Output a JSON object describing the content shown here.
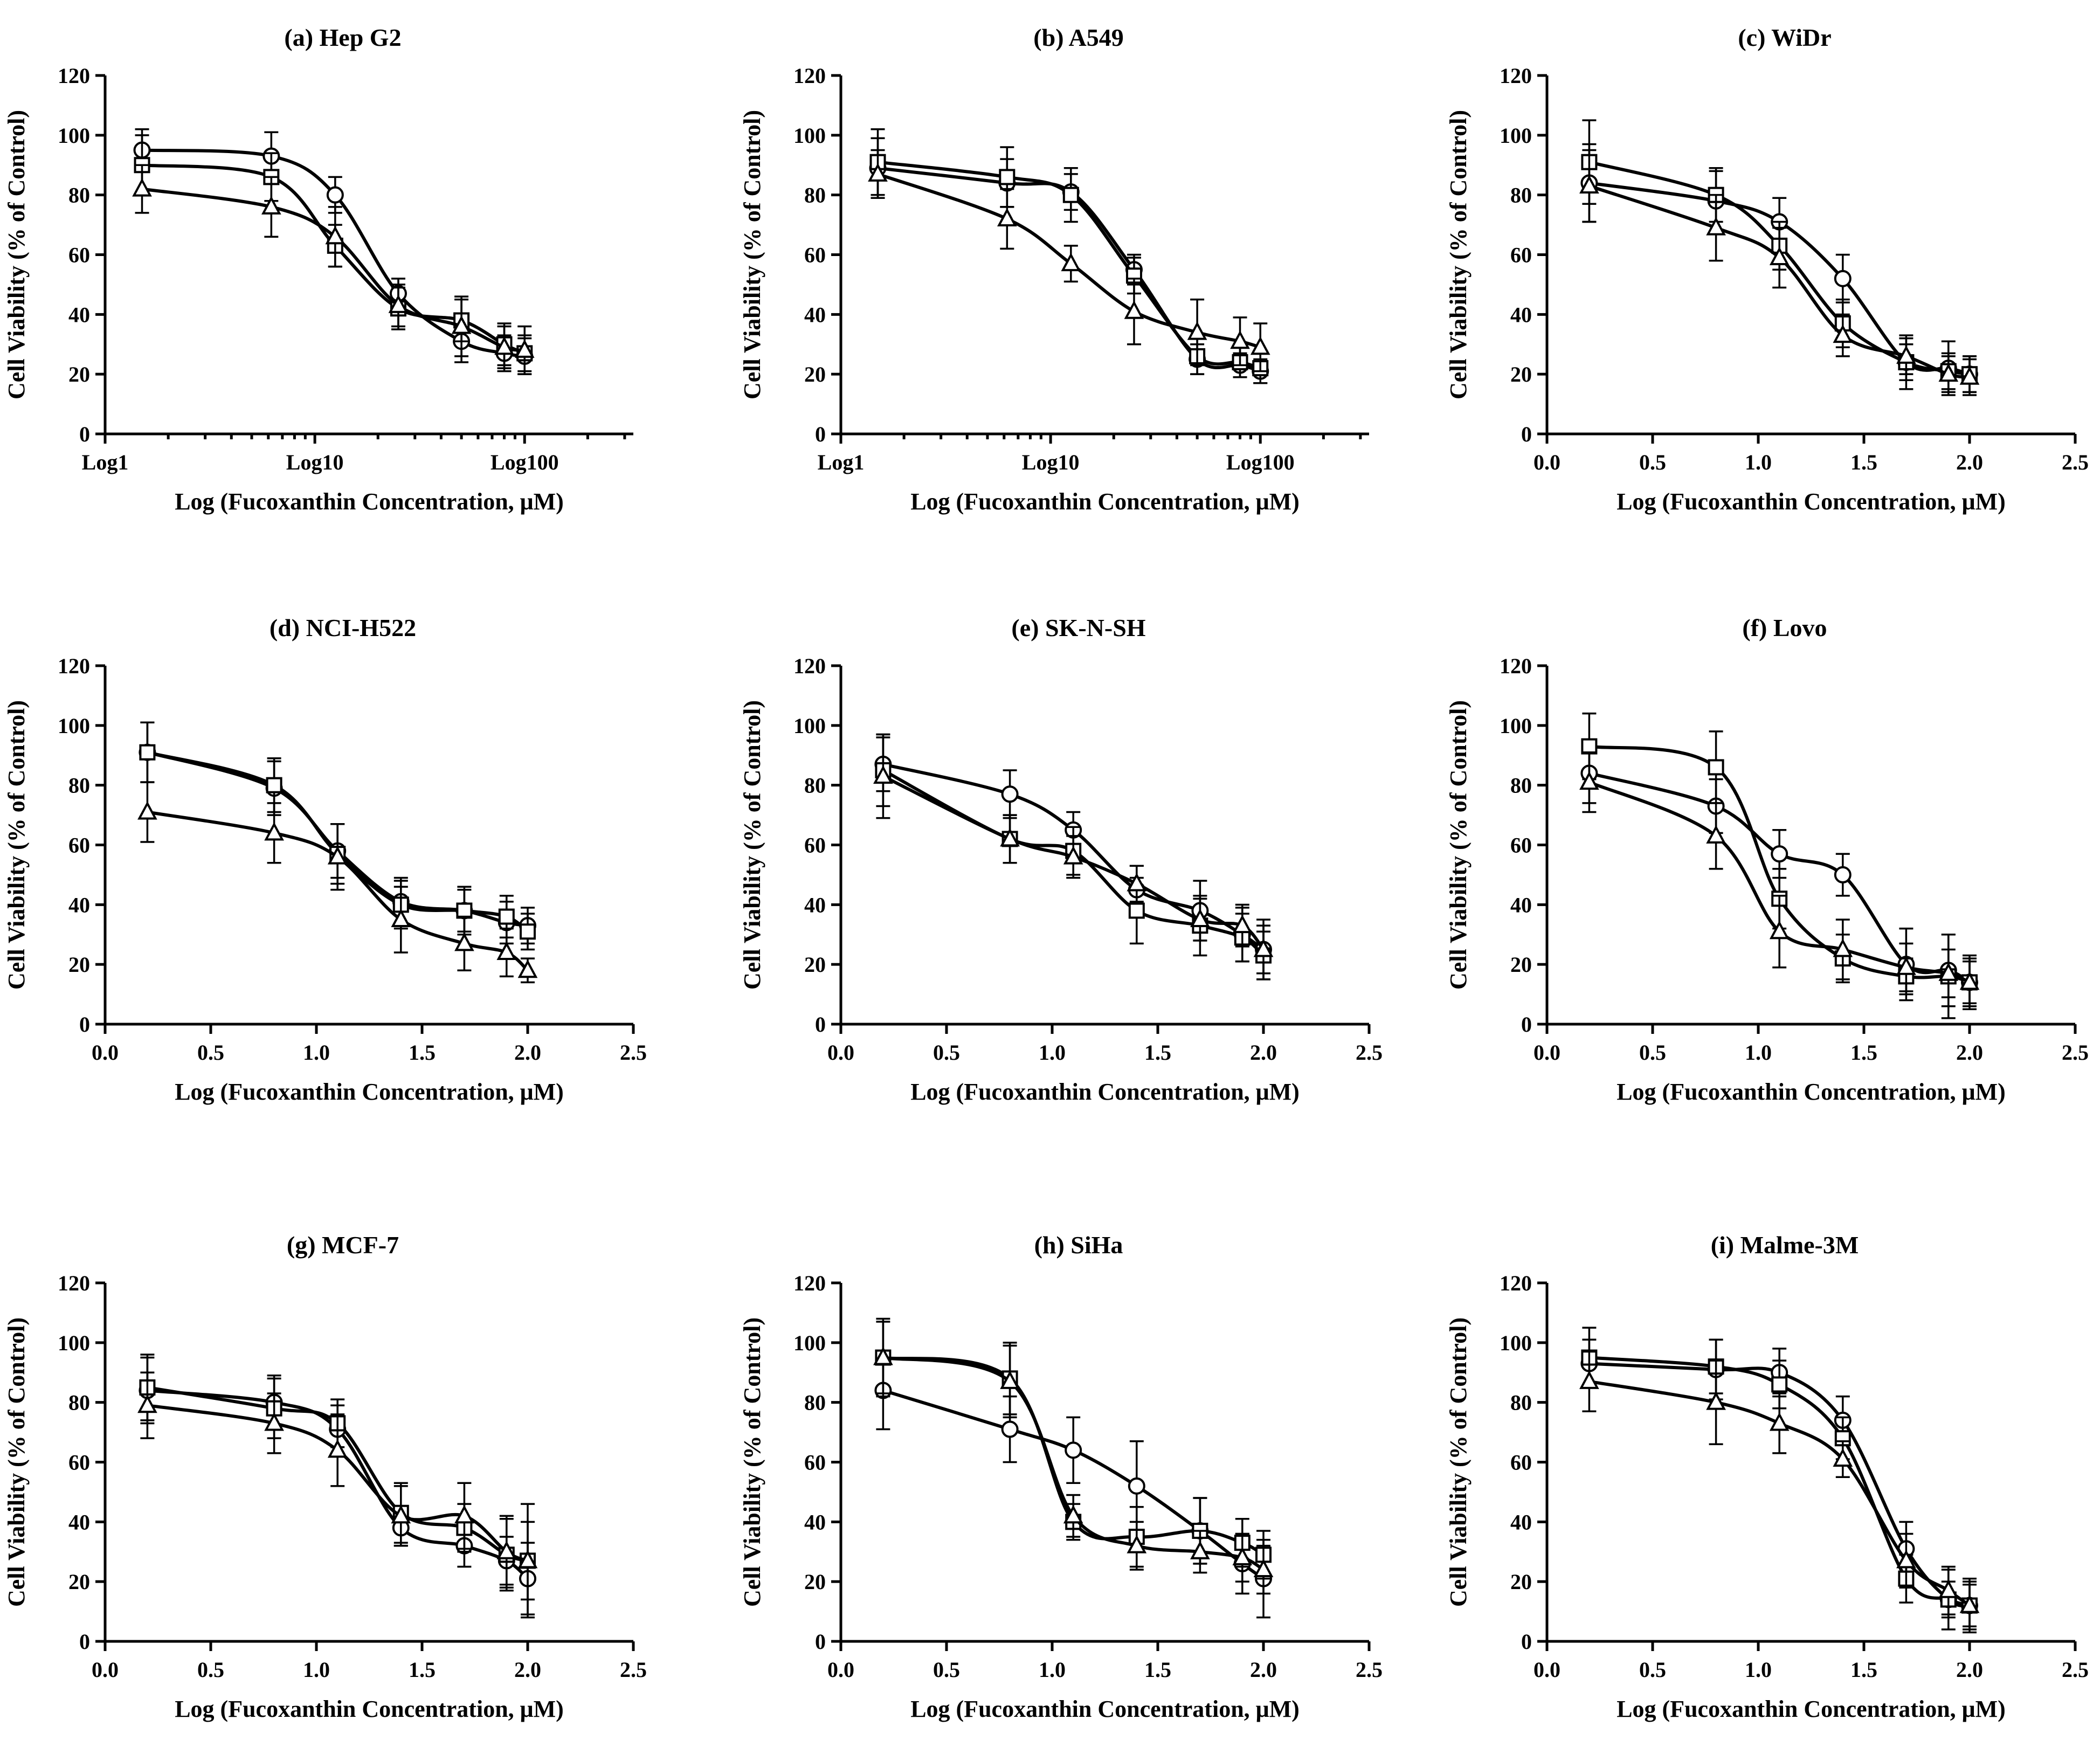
{
  "figure": {
    "xlabel": "Log (Fucoxanthin Concentration, μM)",
    "ylabel": "Cell Viability (% of Control)"
  },
  "chart_data": [
    {
      "type": "line",
      "title": "(a) Hep G2",
      "xlabel": "Log (Fucoxanthin Concentration, μM)",
      "ylabel": "Cell Viability (% of Control)",
      "xaxis": "log",
      "xlim": [
        1,
        330
      ],
      "ylim": [
        0,
        120
      ],
      "xticks": [
        1,
        10,
        100
      ],
      "xticklabels": [
        "Log1",
        "Log10",
        "Log100"
      ],
      "yticks": [
        0,
        20,
        40,
        60,
        80,
        100,
        120
      ],
      "x": [
        1.5,
        6.2,
        12.5,
        25,
        50,
        80,
        100
      ],
      "series": [
        {
          "name": "circle",
          "marker": "circle",
          "values": [
            95,
            93,
            80,
            47,
            31,
            27,
            26
          ],
          "errors": [
            7,
            8,
            6,
            5,
            7,
            6,
            6
          ]
        },
        {
          "name": "square",
          "marker": "square",
          "values": [
            90,
            86,
            63,
            42,
            38,
            30,
            27
          ],
          "errors": [
            10,
            8,
            7,
            7,
            7,
            7,
            6
          ]
        },
        {
          "name": "triangle",
          "marker": "triangle",
          "values": [
            82,
            76,
            66,
            43,
            36,
            29,
            28
          ],
          "errors": [
            8,
            10,
            10,
            7,
            10,
            7,
            8
          ]
        }
      ]
    },
    {
      "type": "line",
      "title": "(b) A549",
      "xlabel": "Log (Fucoxanthin Concentration, μM)",
      "ylabel": "Cell Viability (% of Control)",
      "xaxis": "log",
      "xlim": [
        1,
        330
      ],
      "ylim": [
        0,
        120
      ],
      "xticks": [
        1,
        10,
        100
      ],
      "xticklabels": [
        "Log1",
        "Log10",
        "Log100"
      ],
      "yticks": [
        0,
        20,
        40,
        60,
        80,
        100,
        120
      ],
      "x": [
        1.5,
        6.2,
        12.5,
        25,
        50,
        80,
        100
      ],
      "series": [
        {
          "name": "circle",
          "marker": "circle",
          "values": [
            89,
            84,
            81,
            55,
            25,
            23,
            21
          ],
          "errors": [
            10,
            8,
            6,
            5,
            5,
            4,
            4
          ]
        },
        {
          "name": "square",
          "marker": "square",
          "values": [
            91,
            86,
            80,
            53,
            26,
            24,
            22
          ],
          "errors": [
            11,
            10,
            9,
            6,
            6,
            5,
            5
          ]
        },
        {
          "name": "triangle",
          "marker": "triangle",
          "values": [
            87,
            72,
            57,
            41,
            34,
            31,
            29
          ],
          "errors": [
            8,
            10,
            6,
            11,
            11,
            8,
            8
          ]
        }
      ]
    },
    {
      "type": "line",
      "title": "(c) WiDr",
      "xlabel": "Log (Fucoxanthin Concentration, μM)",
      "ylabel": "Cell Viability (% of Control)",
      "xaxis": "linear",
      "xlim": [
        0,
        2.5
      ],
      "ylim": [
        0,
        120
      ],
      "xticks": [
        0,
        0.5,
        1,
        1.5,
        2,
        2.5
      ],
      "xticklabels": [
        "0.0",
        "0.5",
        "1.0",
        "1.5",
        "2.0",
        "2.5"
      ],
      "yticks": [
        0,
        20,
        40,
        60,
        80,
        100,
        120
      ],
      "x": [
        0.2,
        0.8,
        1.1,
        1.4,
        1.7,
        1.9,
        2.0
      ],
      "series": [
        {
          "name": "circle",
          "marker": "circle",
          "values": [
            84,
            78,
            71,
            52,
            24,
            22,
            20
          ],
          "errors": [
            13,
            10,
            8,
            8,
            9,
            9,
            6
          ]
        },
        {
          "name": "square",
          "marker": "square",
          "values": [
            91,
            80,
            63,
            37,
            24,
            21,
            20
          ],
          "errors": [
            14,
            9,
            8,
            8,
            6,
            6,
            6
          ]
        },
        {
          "name": "triangle",
          "marker": "triangle",
          "values": [
            83,
            69,
            59,
            33,
            26,
            20,
            19
          ],
          "errors": [
            12,
            11,
            10,
            7,
            6,
            6,
            6
          ]
        }
      ]
    },
    {
      "type": "line",
      "title": "(d) NCI-H522",
      "xlabel": "Log (Fucoxanthin Concentration, μM)",
      "ylabel": "Cell Viability (% of Control)",
      "xaxis": "linear",
      "xlim": [
        0,
        2.5
      ],
      "ylim": [
        0,
        120
      ],
      "xticks": [
        0,
        0.5,
        1,
        1.5,
        2,
        2.5
      ],
      "xticklabels": [
        "0.0",
        "0.5",
        "1.0",
        "1.5",
        "2.0",
        "2.5"
      ],
      "yticks": [
        0,
        20,
        40,
        60,
        80,
        100,
        120
      ],
      "x": [
        0.2,
        0.8,
        1.1,
        1.4,
        1.7,
        1.9,
        2.0
      ],
      "series": [
        {
          "name": "circle",
          "marker": "circle",
          "values": [
            91,
            79,
            58,
            41,
            38,
            34,
            33
          ],
          "errors": [
            10,
            9,
            9,
            8,
            7,
            7,
            6
          ]
        },
        {
          "name": "square",
          "marker": "square",
          "values": [
            91,
            80,
            57,
            40,
            38,
            36,
            31
          ],
          "errors": [
            10,
            9,
            10,
            8,
            8,
            7,
            6
          ]
        },
        {
          "name": "triangle",
          "marker": "triangle",
          "values": [
            71,
            64,
            56,
            35,
            27,
            24,
            18
          ],
          "errors": [
            10,
            10,
            11,
            11,
            9,
            8,
            4
          ]
        }
      ]
    },
    {
      "type": "line",
      "title": "(e) SK-N-SH",
      "xlabel": "Log (Fucoxanthin Concentration, μM)",
      "ylabel": "Cell Viability (% of Control)",
      "xaxis": "linear",
      "xlim": [
        0,
        2.5
      ],
      "ylim": [
        0,
        120
      ],
      "xticks": [
        0,
        0.5,
        1,
        1.5,
        2,
        2.5
      ],
      "xticklabels": [
        "0.0",
        "0.5",
        "1.0",
        "1.5",
        "2.0",
        "2.5"
      ],
      "yticks": [
        0,
        20,
        40,
        60,
        80,
        100,
        120
      ],
      "x": [
        0.2,
        0.8,
        1.1,
        1.4,
        1.7,
        1.9,
        2.0
      ],
      "series": [
        {
          "name": "circle",
          "marker": "circle",
          "values": [
            87,
            77,
            65,
            45,
            38,
            30,
            25
          ],
          "errors": [
            9,
            8,
            6,
            8,
            10,
            9,
            10
          ]
        },
        {
          "name": "square",
          "marker": "square",
          "values": [
            85,
            62,
            58,
            38,
            33,
            29,
            23
          ],
          "errors": [
            12,
            8,
            8,
            11,
            10,
            8,
            8
          ]
        },
        {
          "name": "triangle",
          "marker": "triangle",
          "values": [
            83,
            62,
            56,
            47,
            35,
            33,
            25
          ],
          "errors": [
            14,
            8,
            7,
            6,
            7,
            7,
            8
          ]
        }
      ]
    },
    {
      "type": "line",
      "title": "(f) Lovo",
      "xlabel": "Log (Fucoxanthin Concentration, μM)",
      "ylabel": "Cell Viability (% of Control)",
      "xaxis": "linear",
      "xlim": [
        0,
        2.5
      ],
      "ylim": [
        0,
        120
      ],
      "xticks": [
        0,
        0.5,
        1,
        1.5,
        2,
        2.5
      ],
      "xticklabels": [
        "0.0",
        "0.5",
        "1.0",
        "1.5",
        "2.0",
        "2.5"
      ],
      "yticks": [
        0,
        20,
        40,
        60,
        80,
        100,
        120
      ],
      "x": [
        0.2,
        0.8,
        1.1,
        1.4,
        1.7,
        1.9,
        2.0
      ],
      "series": [
        {
          "name": "circle",
          "marker": "circle",
          "values": [
            84,
            73,
            57,
            50,
            20,
            18,
            14
          ],
          "errors": [
            10,
            9,
            8,
            7,
            12,
            12,
            9
          ]
        },
        {
          "name": "square",
          "marker": "square",
          "values": [
            93,
            86,
            42,
            22,
            16,
            16,
            14
          ],
          "errors": [
            11,
            12,
            10,
            8,
            6,
            14,
            7
          ]
        },
        {
          "name": "triangle",
          "marker": "triangle",
          "values": [
            81,
            63,
            31,
            25,
            19,
            17,
            14
          ],
          "errors": [
            10,
            11,
            12,
            10,
            8,
            8,
            8
          ]
        }
      ]
    },
    {
      "type": "line",
      "title": "(g) MCF-7",
      "xlabel": "Log (Fucoxanthin Concentration, μM)",
      "ylabel": "Cell Viability (% of Control)",
      "xaxis": "linear",
      "xlim": [
        0,
        2.5
      ],
      "ylim": [
        0,
        120
      ],
      "xticks": [
        0,
        0.5,
        1,
        1.5,
        2,
        2.5
      ],
      "xticklabels": [
        "0.0",
        "0.5",
        "1.0",
        "1.5",
        "2.0",
        "2.5"
      ],
      "yticks": [
        0,
        20,
        40,
        60,
        80,
        100,
        120
      ],
      "x": [
        0.2,
        0.8,
        1.1,
        1.4,
        1.7,
        1.9,
        2.0
      ],
      "series": [
        {
          "name": "circle",
          "marker": "circle",
          "values": [
            84,
            80,
            71,
            38,
            32,
            27,
            21
          ],
          "errors": [
            11,
            9,
            8,
            6,
            7,
            8,
            12
          ]
        },
        {
          "name": "square",
          "marker": "square",
          "values": [
            85,
            78,
            73,
            43,
            38,
            29,
            27
          ],
          "errors": [
            11,
            10,
            8,
            10,
            8,
            12,
            19
          ]
        },
        {
          "name": "triangle",
          "marker": "triangle",
          "values": [
            79,
            73,
            64,
            42,
            42,
            30,
            27
          ],
          "errors": [
            11,
            10,
            12,
            10,
            11,
            12,
            13
          ]
        }
      ]
    },
    {
      "type": "line",
      "title": "(h) SiHa",
      "xlabel": "Log (Fucoxanthin Concentration, μM)",
      "ylabel": "Cell Viability (% of Control)",
      "xaxis": "linear",
      "xlim": [
        0,
        2.5
      ],
      "ylim": [
        0,
        120
      ],
      "xticks": [
        0,
        0.5,
        1,
        1.5,
        2,
        2.5
      ],
      "xticklabels": [
        "0.0",
        "0.5",
        "1.0",
        "1.5",
        "2.0",
        "2.5"
      ],
      "yticks": [
        0,
        20,
        40,
        60,
        80,
        100,
        120
      ],
      "x": [
        0.2,
        0.8,
        1.1,
        1.4,
        1.7,
        1.9,
        2.0
      ],
      "series": [
        {
          "name": "circle",
          "marker": "circle",
          "values": [
            84,
            71,
            64,
            52,
            37,
            26,
            21
          ],
          "errors": [
            13,
            11,
            11,
            15,
            11,
            10,
            13
          ]
        },
        {
          "name": "square",
          "marker": "square",
          "values": [
            95,
            88,
            40,
            35,
            37,
            33,
            29
          ],
          "errors": [
            13,
            12,
            6,
            10,
            11,
            8,
            8
          ]
        },
        {
          "name": "triangle",
          "marker": "triangle",
          "values": [
            95,
            87,
            42,
            32,
            30,
            28,
            24
          ],
          "errors": [
            12,
            12,
            7,
            8,
            7,
            8,
            8
          ]
        }
      ]
    },
    {
      "type": "line",
      "title": "(i) Malme-3M",
      "xlabel": "Log (Fucoxanthin Concentration, μM)",
      "ylabel": "Cell Viability (% of Control)",
      "xaxis": "linear",
      "xlim": [
        0,
        2.5
      ],
      "ylim": [
        0,
        120
      ],
      "xticks": [
        0,
        0.5,
        1,
        1.5,
        2,
        2.5
      ],
      "xticklabels": [
        "0.0",
        "0.5",
        "1.0",
        "1.5",
        "2.0",
        "2.5"
      ],
      "yticks": [
        0,
        20,
        40,
        60,
        80,
        100,
        120
      ],
      "x": [
        0.2,
        0.8,
        1.1,
        1.4,
        1.7,
        1.9,
        2.0
      ],
      "series": [
        {
          "name": "circle",
          "marker": "circle",
          "values": [
            93,
            91,
            90,
            74,
            31,
            14,
            12
          ],
          "errors": [
            8,
            10,
            8,
            8,
            9,
            10,
            9
          ]
        },
        {
          "name": "square",
          "marker": "square",
          "values": [
            95,
            92,
            86,
            68,
            21,
            14,
            12
          ],
          "errors": [
            10,
            9,
            8,
            7,
            8,
            6,
            7
          ]
        },
        {
          "name": "triangle",
          "marker": "triangle",
          "values": [
            87,
            80,
            73,
            61,
            27,
            17,
            12
          ],
          "errors": [
            10,
            14,
            10,
            6,
            9,
            8,
            8
          ]
        }
      ]
    }
  ]
}
